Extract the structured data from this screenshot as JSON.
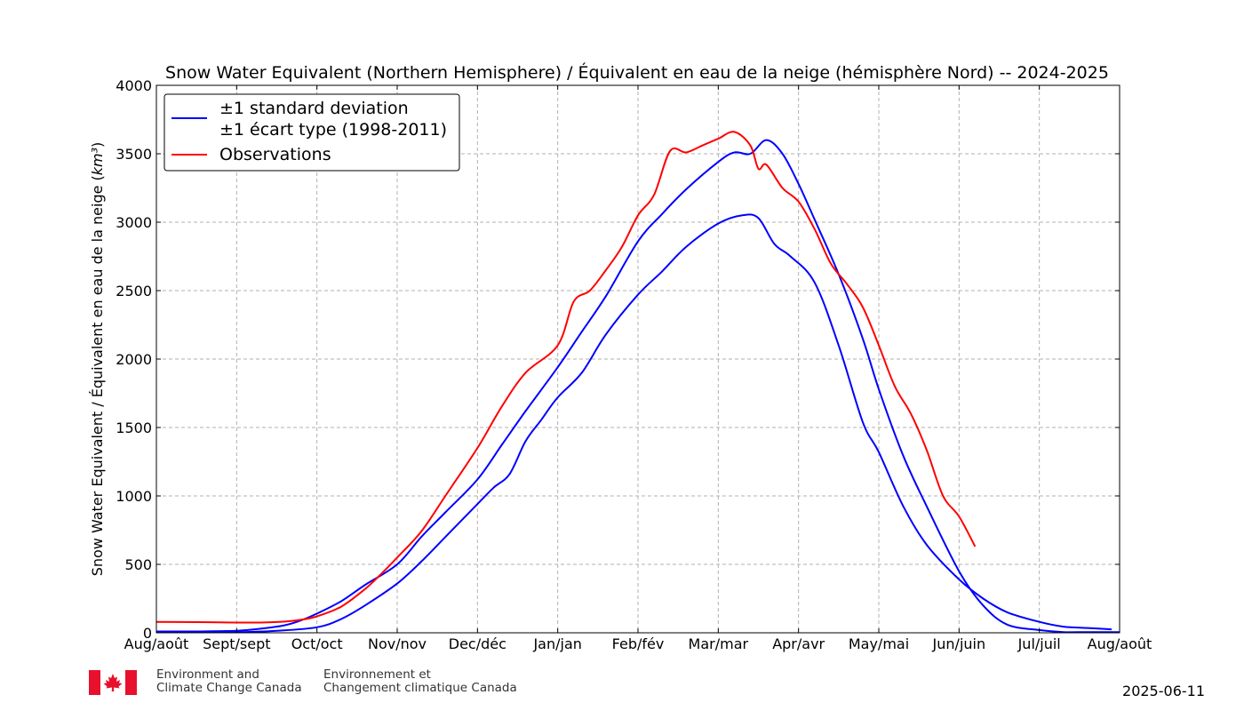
{
  "chart_data": {
    "type": "line",
    "title": "Snow Water Equivalent (Northern Hemisphere) / Équivalent en eau de la neige (hémisphère Nord) -- 2024-2025",
    "ylabel": "Snow Water Equivalent / Équivalent en eau de la neige (km³)",
    "xlabel": "",
    "ylim": [
      0,
      4000
    ],
    "yticks": [
      0,
      500,
      1000,
      1500,
      2000,
      2500,
      3000,
      3500,
      4000
    ],
    "xticks": [
      "Aug/août",
      "Sept/sept",
      "Oct/oct",
      "Nov/nov",
      "Dec/déc",
      "Jan/jan",
      "Feb/fév",
      "Mar/mar",
      "Apr/avr",
      "May/mai",
      "Jun/juin",
      "Jul/juil",
      "Aug/août"
    ],
    "grid": true,
    "legend_position": "top-left",
    "legend": {
      "std_label_line1": "±1 standard deviation",
      "std_label_line2": "±1 écart type (1998-2011)",
      "obs_label": "Observations"
    },
    "series": [
      {
        "name": "±1 standard deviation ±1 écart type (1998-2011)",
        "color": "#0000ff",
        "role": "upper",
        "x": [
          0,
          0.5,
          1,
          1.3,
          1.6,
          1.8,
          2,
          2.3,
          2.6,
          3,
          3.3,
          3.6,
          4,
          4.3,
          4.6,
          5,
          5.3,
          5.6,
          6,
          6.3,
          6.6,
          7,
          7.2,
          7.4,
          7.6,
          7.8,
          8,
          8.2,
          8.5,
          8.8,
          9,
          9.3,
          9.6,
          10,
          10.3,
          10.6,
          11,
          11.3,
          11.6,
          12
        ],
        "y": [
          10,
          10,
          15,
          30,
          55,
          90,
          140,
          230,
          350,
          500,
          700,
          880,
          1120,
          1370,
          1620,
          1940,
          2200,
          2460,
          2860,
          3060,
          3240,
          3440,
          3510,
          3500,
          3600,
          3500,
          3280,
          3020,
          2620,
          2150,
          1780,
          1300,
          920,
          450,
          200,
          60,
          20,
          5,
          5,
          5
        ]
      },
      {
        "name": "±1 standard deviation ±1 écart type (1998-2011) (lower)",
        "color": "#0000ff",
        "role": "lower",
        "x": [
          0,
          1,
          1.5,
          2,
          2.3,
          2.6,
          3,
          3.3,
          3.6,
          4,
          4.2,
          4.4,
          4.6,
          4.8,
          5,
          5.3,
          5.6,
          6,
          6.3,
          6.6,
          7,
          7.3,
          7.5,
          7.7,
          7.9,
          8.2,
          8.5,
          8.8,
          9,
          9.3,
          9.6,
          10,
          10.3,
          10.6,
          11,
          11.3,
          11.6,
          11.9
        ],
        "y": [
          5,
          5,
          15,
          40,
          100,
          200,
          360,
          520,
          700,
          940,
          1060,
          1160,
          1400,
          1560,
          1720,
          1900,
          2180,
          2470,
          2640,
          2820,
          2990,
          3050,
          3030,
          2840,
          2750,
          2560,
          2100,
          1540,
          1320,
          930,
          640,
          390,
          250,
          150,
          80,
          45,
          35,
          25
        ]
      },
      {
        "name": "Observations",
        "color": "#ff0000",
        "role": "observed",
        "x": [
          0,
          0.5,
          1,
          1.3,
          1.6,
          1.8,
          2,
          2.3,
          2.6,
          2.8,
          3,
          3.3,
          3.6,
          4,
          4.3,
          4.6,
          5,
          5.2,
          5.4,
          5.6,
          5.8,
          6,
          6.2,
          6.4,
          6.6,
          6.8,
          7,
          7.2,
          7.4,
          7.5,
          7.6,
          7.8,
          8,
          8.2,
          8.4,
          8.6,
          8.8,
          9,
          9.2,
          9.4,
          9.6,
          9.8,
          10,
          10.2
        ],
        "y": [
          80,
          78,
          75,
          75,
          82,
          95,
          120,
          190,
          320,
          430,
          550,
          740,
          1000,
          1350,
          1650,
          1900,
          2100,
          2420,
          2500,
          2650,
          2820,
          3050,
          3200,
          3520,
          3510,
          3560,
          3610,
          3660,
          3560,
          3390,
          3420,
          3250,
          3150,
          2950,
          2700,
          2550,
          2380,
          2100,
          1800,
          1600,
          1330,
          1000,
          850,
          630
        ]
      }
    ]
  },
  "footer": {
    "org_en_line1": "Environment and",
    "org_en_line2": "Climate Change Canada",
    "org_fr_line1": "Environnement et",
    "org_fr_line2": "Changement climatique Canada",
    "date": "2025-06-11"
  }
}
